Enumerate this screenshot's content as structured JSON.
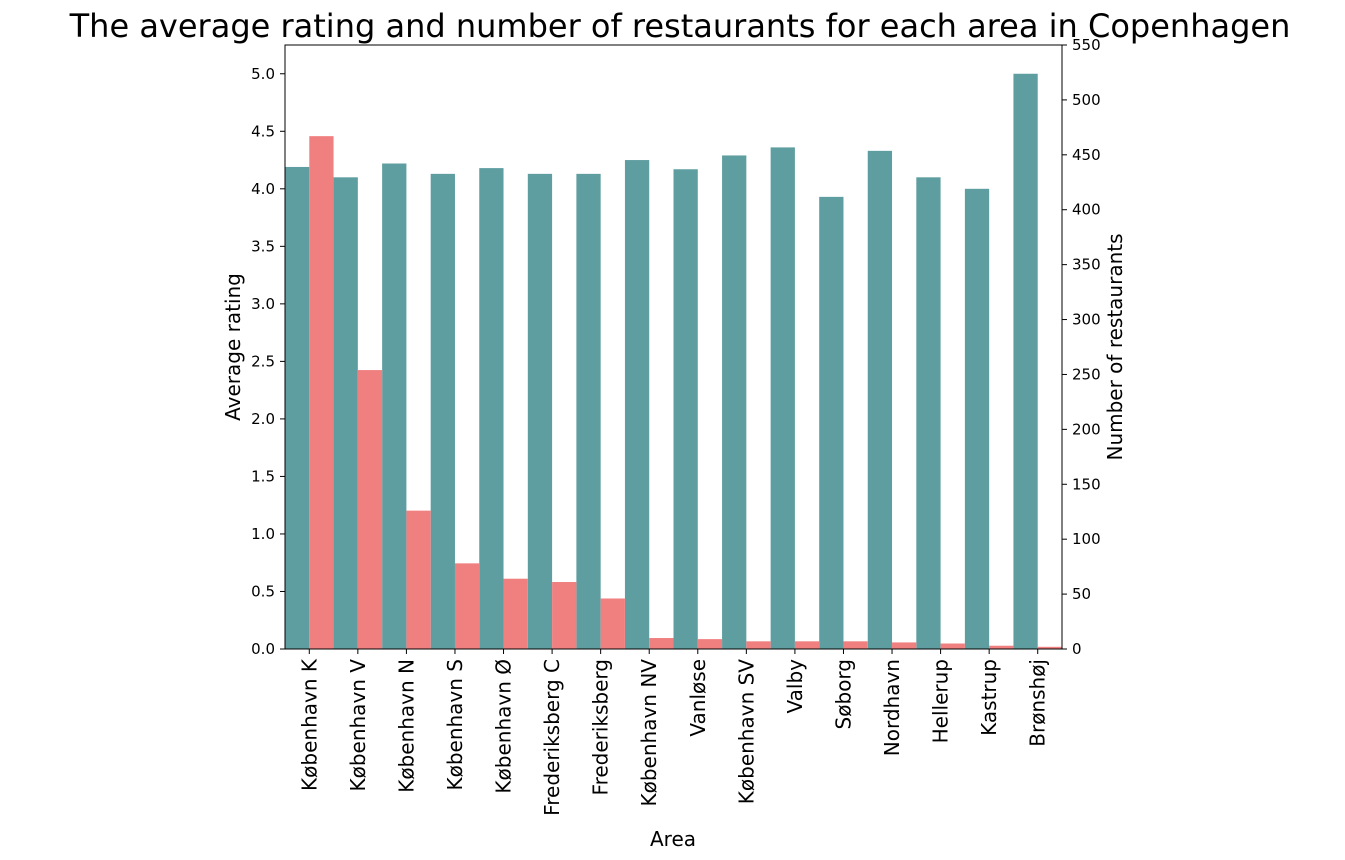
{
  "chart_data": {
    "type": "bar",
    "title": "The average rating and number of restaurants for each area in Copenhagen",
    "xlabel": "Area",
    "ylabel_left": "Average rating",
    "ylabel_right": "Number of restaurants",
    "categories": [
      "København K",
      "København V",
      "København N",
      "København S",
      "København Ø",
      "Frederiksberg C",
      "Frederiksberg",
      "København NV",
      "Vanløse",
      "København SV",
      "Valby",
      "Søborg",
      "Nordhavn",
      "Hellerup",
      "Kastrup",
      "Brønshøj"
    ],
    "series": [
      {
        "axis": "left",
        "color": "#5f9ea0",
        "values": [
          4.19,
          4.1,
          4.22,
          4.13,
          4.18,
          4.13,
          4.13,
          4.25,
          4.17,
          4.29,
          4.36,
          3.93,
          4.33,
          4.1,
          4.0,
          5.0
        ]
      },
      {
        "axis": "right",
        "color": "#f08080",
        "values": [
          467,
          254,
          126,
          78,
          64,
          61,
          46,
          10,
          9,
          7,
          7,
          7,
          6,
          5,
          3,
          2
        ]
      }
    ],
    "ylim_left": [
      0,
      5.25
    ],
    "ylim_right": [
      0,
      550
    ],
    "yticks_left": [
      "0.0",
      "0.5",
      "1.0",
      "1.5",
      "2.0",
      "2.5",
      "3.0",
      "3.5",
      "4.0",
      "4.5",
      "5.0"
    ],
    "yticks_right": [
      "0",
      "50",
      "100",
      "150",
      "200",
      "250",
      "300",
      "350",
      "400",
      "450",
      "500",
      "550"
    ],
    "grid": false
  }
}
